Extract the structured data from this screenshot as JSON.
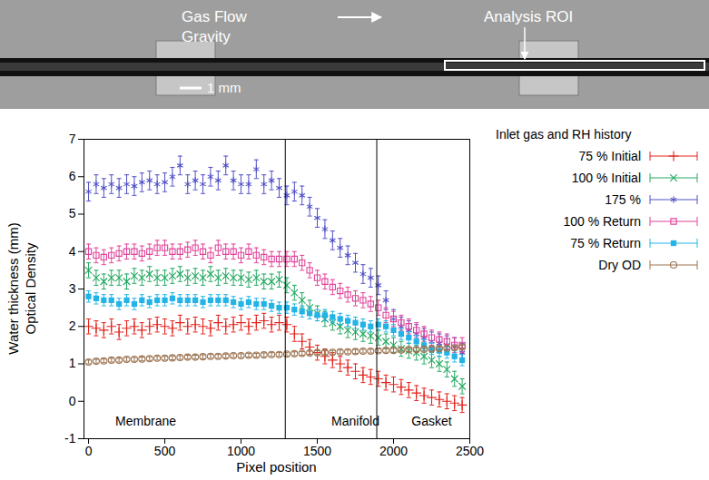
{
  "image": {
    "labels": {
      "flow": "Gas Flow",
      "gravity": "Gravity",
      "roi": "Analysis ROI",
      "scale": "1 mm"
    }
  },
  "chart_data": {
    "type": "scatter",
    "xlabel": "Pixel position",
    "ylabel": [
      "Water thickness (mm)",
      "Optical Density"
    ],
    "legend_title": "Inlet gas and RH history",
    "legend": "right",
    "grid": false,
    "xlim": [
      -30,
      2500
    ],
    "xticks": [
      0,
      500,
      1000,
      1500,
      2000,
      2500
    ],
    "ylim": [
      -1,
      7
    ],
    "yticks": [
      -1,
      0,
      1,
      2,
      3,
      4,
      5,
      6,
      7
    ],
    "vlines": [
      1290,
      1890
    ],
    "region_labels": [
      {
        "text": "Membrane",
        "x": 375,
        "y": -0.55
      },
      {
        "text": "Manifold",
        "x": 1750,
        "y": -0.55
      },
      {
        "text": "Gasket",
        "x": 2250,
        "y": -0.55
      }
    ],
    "x": [
      0,
      50,
      100,
      150,
      200,
      250,
      300,
      350,
      400,
      450,
      500,
      550,
      600,
      650,
      700,
      750,
      800,
      850,
      900,
      950,
      1000,
      1050,
      1100,
      1150,
      1200,
      1250,
      1300,
      1350,
      1400,
      1450,
      1500,
      1550,
      1600,
      1650,
      1700,
      1750,
      1800,
      1850,
      1900,
      1950,
      2000,
      2050,
      2100,
      2150,
      2200,
      2250,
      2300,
      2350,
      2400,
      2450
    ],
    "series": [
      {
        "name": "75 % Initial",
        "color": "#e3221c",
        "marker": "plus",
        "error": 0.2,
        "values": [
          2.0,
          1.95,
          1.9,
          2.0,
          1.85,
          1.95,
          2.0,
          1.9,
          2.0,
          2.05,
          2.0,
          1.95,
          2.1,
          2.0,
          2.05,
          2.0,
          1.95,
          2.1,
          2.0,
          2.05,
          2.1,
          2.0,
          2.1,
          2.15,
          2.05,
          2.1,
          2.05,
          1.8,
          1.6,
          1.45,
          1.3,
          1.2,
          1.1,
          1.0,
          0.9,
          0.8,
          0.7,
          0.65,
          0.6,
          0.5,
          0.45,
          0.38,
          0.3,
          0.22,
          0.15,
          0.1,
          0.05,
          0.0,
          -0.05,
          -0.1
        ]
      },
      {
        "name": "100 % Initial",
        "color": "#22a860",
        "marker": "cross",
        "error": 0.2,
        "values": [
          3.5,
          3.3,
          3.2,
          3.3,
          3.3,
          3.2,
          3.35,
          3.3,
          3.4,
          3.3,
          3.3,
          3.35,
          3.4,
          3.3,
          3.35,
          3.3,
          3.4,
          3.3,
          3.35,
          3.3,
          3.3,
          3.25,
          3.3,
          3.2,
          3.2,
          3.25,
          3.1,
          2.9,
          2.7,
          2.5,
          2.35,
          2.2,
          2.1,
          2.0,
          1.9,
          1.85,
          1.8,
          1.75,
          1.7,
          1.6,
          1.5,
          1.4,
          1.35,
          1.3,
          1.2,
          1.1,
          1.0,
          0.85,
          0.6,
          0.4
        ]
      },
      {
        "name": "175 %",
        "color": "#5050c8",
        "marker": "asterisk",
        "error": 0.25,
        "values": [
          5.6,
          5.8,
          5.7,
          5.8,
          5.7,
          5.8,
          5.75,
          5.85,
          5.9,
          5.8,
          5.85,
          6.0,
          6.3,
          5.8,
          5.9,
          5.8,
          6.0,
          5.9,
          6.3,
          5.9,
          5.8,
          5.8,
          6.2,
          5.8,
          5.9,
          5.7,
          5.5,
          5.6,
          5.5,
          5.2,
          4.9,
          4.6,
          4.3,
          4.1,
          3.9,
          3.7,
          3.4,
          3.3,
          3.1,
          2.7,
          2.2,
          2.0,
          1.9,
          1.8,
          1.7,
          1.6,
          1.55,
          1.5,
          1.45,
          1.3
        ]
      },
      {
        "name": "100 % Return",
        "color": "#e0449a",
        "marker": "open_square",
        "error": 0.2,
        "values": [
          4.0,
          3.9,
          3.85,
          3.9,
          3.95,
          4.0,
          4.0,
          3.95,
          4.0,
          4.1,
          4.1,
          4.0,
          4.0,
          4.05,
          4.1,
          4.0,
          3.9,
          4.1,
          4.0,
          4.0,
          3.9,
          4.0,
          3.9,
          3.85,
          3.8,
          3.8,
          3.8,
          3.8,
          3.7,
          3.5,
          3.3,
          3.2,
          3.05,
          2.95,
          2.85,
          2.75,
          2.7,
          2.6,
          2.5,
          2.3,
          2.2,
          2.1,
          2.0,
          1.9,
          1.8,
          1.7,
          1.65,
          1.6,
          1.5,
          1.5
        ]
      },
      {
        "name": "75 % Return",
        "color": "#22b4e6",
        "marker": "filled_square",
        "error": 0.15,
        "values": [
          2.8,
          2.75,
          2.7,
          2.7,
          2.6,
          2.7,
          2.6,
          2.7,
          2.65,
          2.7,
          2.7,
          2.75,
          2.7,
          2.7,
          2.7,
          2.65,
          2.7,
          2.7,
          2.7,
          2.65,
          2.6,
          2.65,
          2.6,
          2.6,
          2.55,
          2.5,
          2.5,
          2.45,
          2.4,
          2.35,
          2.3,
          2.3,
          2.25,
          2.2,
          2.15,
          2.1,
          2.05,
          2.0,
          2.05,
          2.0,
          1.9,
          1.8,
          1.7,
          1.6,
          1.5,
          1.4,
          1.35,
          1.3,
          1.2,
          1.1
        ]
      },
      {
        "name": "Dry OD",
        "color": "#9c7452",
        "marker": "open_circle",
        "error": 0.05,
        "values": [
          1.05,
          1.07,
          1.08,
          1.1,
          1.1,
          1.12,
          1.12,
          1.13,
          1.14,
          1.15,
          1.15,
          1.16,
          1.17,
          1.18,
          1.18,
          1.19,
          1.2,
          1.2,
          1.21,
          1.22,
          1.22,
          1.23,
          1.23,
          1.24,
          1.25,
          1.25,
          1.26,
          1.27,
          1.28,
          1.29,
          1.3,
          1.3,
          1.31,
          1.32,
          1.32,
          1.33,
          1.34,
          1.34,
          1.35,
          1.36,
          1.36,
          1.37,
          1.38,
          1.38,
          1.39,
          1.4,
          1.41,
          1.42,
          1.43,
          1.45
        ]
      }
    ]
  }
}
